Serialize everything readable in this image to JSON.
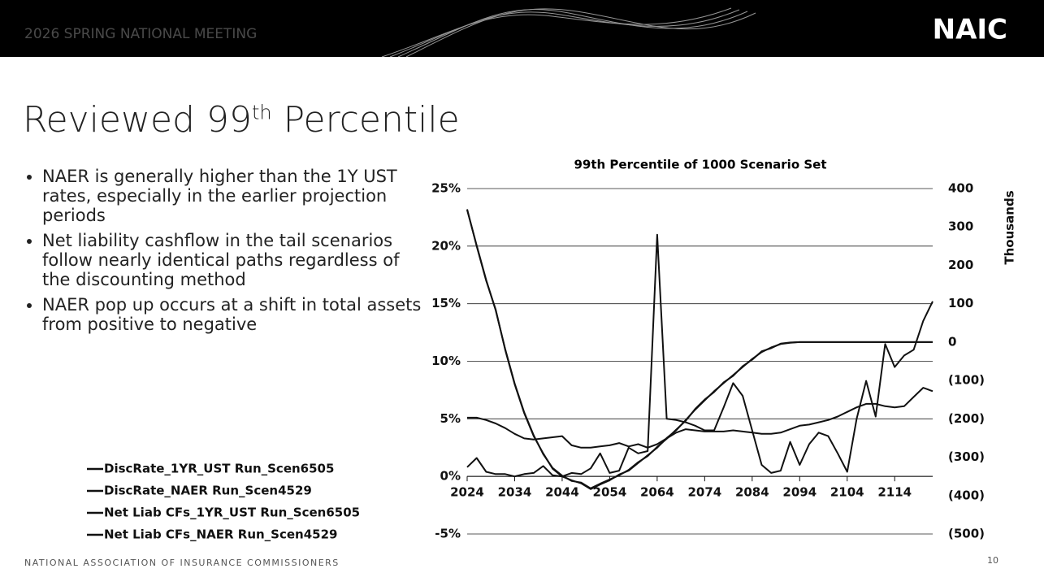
{
  "header": {
    "meeting": "2026 SPRING NATIONAL MEETING",
    "logo": "NAIC"
  },
  "slide_title": {
    "main": "Reviewed 99",
    "sup": "th",
    "rest": " Percentile"
  },
  "bullets": [
    "NAER is generally higher than the 1Y UST rates, especially in the earlier projection periods",
    "Net liability cashflow in the tail scenarios follow nearly identical paths regardless of the discounting method",
    "NAER pop up occurs at a shift in total assets from positive to negative"
  ],
  "footer": {
    "org": "NATIONAL ASSOCIATION OF INSURANCE COMMISSIONERS",
    "page": "10"
  },
  "chart_data": {
    "type": "line",
    "title": "99th Percentile of 1000 Scenario Set",
    "y2_label": "Thousands",
    "x": [
      2024,
      2026,
      2028,
      2030,
      2032,
      2034,
      2036,
      2038,
      2040,
      2042,
      2044,
      2046,
      2048,
      2050,
      2052,
      2054,
      2056,
      2058,
      2060,
      2062,
      2064,
      2066,
      2068,
      2070,
      2072,
      2074,
      2076,
      2078,
      2080,
      2082,
      2084,
      2086,
      2088,
      2090,
      2092,
      2094,
      2096,
      2098,
      2100,
      2102,
      2104,
      2106,
      2108,
      2110,
      2112,
      2114,
      2116,
      2118,
      2120,
      2122
    ],
    "xlim": [
      2024,
      2122
    ],
    "xticks": [
      2024,
      2034,
      2044,
      2054,
      2064,
      2074,
      2084,
      2094,
      2104,
      2114
    ],
    "ylim": [
      -5,
      25
    ],
    "yticks": [
      {
        "value": -5,
        "label": "-5%"
      },
      {
        "value": 0,
        "label": "0%"
      },
      {
        "value": 5,
        "label": "5%"
      },
      {
        "value": 10,
        "label": "10%"
      },
      {
        "value": 15,
        "label": "15%"
      },
      {
        "value": 20,
        "label": "20%"
      },
      {
        "value": 25,
        "label": "25%"
      }
    ],
    "y2lim": [
      -500,
      400
    ],
    "y2ticks": [
      {
        "value": -500,
        "label": "(500)"
      },
      {
        "value": -400,
        "label": "(400)"
      },
      {
        "value": -300,
        "label": "(300)"
      },
      {
        "value": -200,
        "label": "(200)"
      },
      {
        "value": -100,
        "label": "(100)"
      },
      0,
      100,
      200,
      300,
      400
    ],
    "grid": true,
    "series": [
      {
        "name": "DiscRate_1YR_UST Run_Scen6505",
        "color": "#111111",
        "values": [
          5.1,
          5.1,
          4.9,
          4.6,
          4.2,
          3.7,
          3.3,
          3.2,
          3.3,
          3.4,
          3.5,
          2.7,
          2.5,
          2.5,
          2.6,
          2.7,
          2.9,
          2.6,
          2.8,
          2.5,
          2.8,
          3.3,
          3.8,
          4.1,
          4.0,
          3.9,
          3.9,
          3.9,
          4.0,
          3.9,
          3.8,
          3.7,
          3.7,
          3.8,
          4.1,
          4.4,
          4.5,
          4.7,
          4.9,
          5.2,
          5.6,
          6.0,
          6.3,
          6.3,
          6.1,
          6.0,
          6.1,
          6.9,
          7.7,
          7.4
        ]
      },
      {
        "name": "DiscRate_NAER Run_Scen4529",
        "color": "#111111",
        "values": [
          0.8,
          1.6,
          0.4,
          0.2,
          0.2,
          0.0,
          0.2,
          0.3,
          0.9,
          0.1,
          0.0,
          0.3,
          0.2,
          0.7,
          2.0,
          0.3,
          0.5,
          2.5,
          2.0,
          2.2,
          21.0,
          5.0,
          4.9,
          4.7,
          4.4,
          4.0,
          4.0,
          6.0,
          8.1,
          7.0,
          4.0,
          1.0,
          0.3,
          0.5,
          3.0,
          1.0,
          2.8,
          3.8,
          3.5,
          2.0,
          0.4,
          5.0,
          8.3,
          5.2,
          11.5,
          9.5,
          10.5,
          11.0,
          13.5,
          15.2
        ]
      },
      {
        "name": "Net Liab CFs_1YR_UST Run_Scen6505",
        "color": "#111111",
        "axis": "y2",
        "values": [
          346,
          250,
          160,
          85,
          -20,
          -110,
          -185,
          -245,
          -290,
          -330,
          -350,
          -360,
          -368,
          -383,
          -371,
          -360,
          -345,
          -335,
          -315,
          -295,
          -275,
          -250,
          -230,
          -203,
          -176,
          -152,
          -128,
          -107,
          -86,
          -65,
          -44,
          -26,
          -14,
          -5,
          -2,
          0,
          0,
          0,
          0,
          0,
          0,
          0,
          0,
          0,
          0,
          0,
          0,
          0,
          0,
          0
        ]
      },
      {
        "name": "Net Liab CFs_NAER Run_Scen4529",
        "color": "#111111",
        "axis": "y2",
        "values": [
          344,
          252,
          162,
          83,
          -18,
          -108,
          -183,
          -243,
          -292,
          -328,
          -348,
          -362,
          -366,
          -381,
          -369,
          -358,
          -347,
          -333,
          -313,
          -297,
          -273,
          -252,
          -228,
          -205,
          -174,
          -150,
          -130,
          -105,
          -88,
          -63,
          -46,
          -24,
          -16,
          -4,
          -1,
          0,
          0,
          0,
          0,
          0,
          0,
          0,
          0,
          0,
          0,
          0,
          0,
          0,
          0,
          0
        ]
      }
    ]
  }
}
